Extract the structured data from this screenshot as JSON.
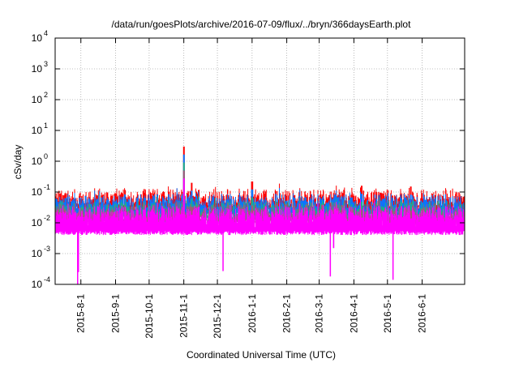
{
  "chart_data": {
    "type": "line",
    "title": "/data/run/goesPlots/archive/2016-07-09/flux/../bryn/366daysEarth.plot",
    "xlabel": "Coordinated Universal Time (UTC)",
    "ylabel": "cSv/day",
    "yscale": "log",
    "ylim": [
      0.0001,
      10000
    ],
    "xlim": [
      "2015-07-09",
      "2016-07-09"
    ],
    "grid": true,
    "legend": "none",
    "y_ticks": [
      {
        "base": "10",
        "exp": "4",
        "value": 10000
      },
      {
        "base": "10",
        "exp": "3",
        "value": 1000
      },
      {
        "base": "10",
        "exp": "2",
        "value": 100
      },
      {
        "base": "10",
        "exp": "1",
        "value": 10
      },
      {
        "base": "10",
        "exp": "0",
        "value": 1
      },
      {
        "base": "10",
        "exp": "-1",
        "value": 0.1
      },
      {
        "base": "10",
        "exp": "-2",
        "value": 0.01
      },
      {
        "base": "10",
        "exp": "-3",
        "value": 0.001
      },
      {
        "base": "10",
        "exp": "-4",
        "value": 0.0001
      }
    ],
    "x_ticks": [
      {
        "label": "2015-8-1",
        "date": "2015-08-01"
      },
      {
        "label": "2015-9-1",
        "date": "2015-09-01"
      },
      {
        "label": "2015-10-1",
        "date": "2015-10-01"
      },
      {
        "label": "2015-11-1",
        "date": "2015-11-01"
      },
      {
        "label": "2015-12-1",
        "date": "2015-12-01"
      },
      {
        "label": "2016-1-1",
        "date": "2016-01-01"
      },
      {
        "label": "2016-2-1",
        "date": "2016-02-01"
      },
      {
        "label": "2016-3-1",
        "date": "2016-03-01"
      },
      {
        "label": "2016-4-1",
        "date": "2016-04-01"
      },
      {
        "label": "2016-5-1",
        "date": "2016-05-01"
      },
      {
        "label": "2016-6-1",
        "date": "2016-06-01"
      }
    ],
    "series": [
      {
        "name": "red",
        "color": "#ff0000",
        "typical_high": 0.07,
        "typical_low": 0.03
      },
      {
        "name": "blue",
        "color": "#0a74ff",
        "typical_high": 0.05,
        "typical_low": 0.02
      },
      {
        "name": "teal",
        "color": "#1fae8a",
        "typical_high": 0.03,
        "typical_low": 0.015
      },
      {
        "name": "mauve",
        "color": "#a05a78",
        "typical_high": 0.025,
        "typical_low": 0.012
      },
      {
        "name": "magenta",
        "color": "#ff00ff",
        "typical_high": 0.02,
        "typical_low": 0.005
      }
    ],
    "spikes": [
      {
        "date": "2015-11-01",
        "value": 3.0
      },
      {
        "date": "2015-11-08",
        "value": 0.2
      },
      {
        "date": "2016-01-01",
        "value": 0.22
      },
      {
        "date": "2016-04-08",
        "value": 0.16
      },
      {
        "date": "2016-05-22",
        "value": 0.15
      }
    ],
    "dips": [
      {
        "date": "2015-07-29",
        "value": 0.0001
      },
      {
        "date": "2015-07-30",
        "value": 0.00025
      },
      {
        "date": "2015-12-06",
        "value": 0.00027
      },
      {
        "date": "2016-03-11",
        "value": 0.00018
      },
      {
        "date": "2016-03-14",
        "value": 0.0015
      },
      {
        "date": "2016-05-06",
        "value": 0.00014
      }
    ]
  }
}
